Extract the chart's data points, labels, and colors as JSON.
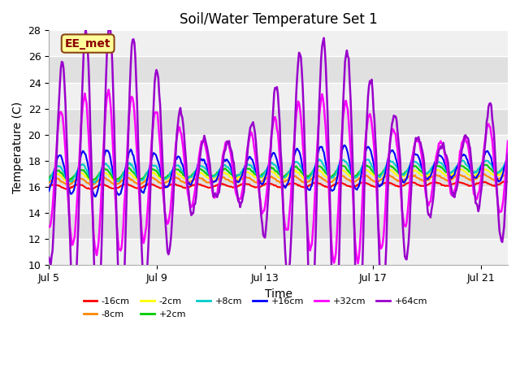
{
  "title": "Soil/Water Temperature Set 1",
  "xlabel": "Time",
  "ylabel": "Temperature (C)",
  "ylim": [
    10,
    28
  ],
  "xlim": [
    0,
    17
  ],
  "yticks": [
    10,
    12,
    14,
    16,
    18,
    20,
    22,
    24,
    26,
    28
  ],
  "xtick_labels": [
    "Jul 5",
    "Jul 9",
    "Jul 13",
    "Jul 17",
    "Jul 21"
  ],
  "xtick_positions": [
    0,
    4,
    8,
    12,
    16
  ],
  "background_color": "#ffffff",
  "plot_bg_light": "#f0f0f0",
  "plot_bg_dark": "#e0e0e0",
  "grid_color": "#ffffff",
  "annotation_text": "EE_met",
  "annotation_bg": "#ffff99",
  "annotation_border": "#8b4513",
  "series": [
    {
      "label": "-16cm",
      "color": "#ff0000"
    },
    {
      "label": "-8cm",
      "color": "#ff8800"
    },
    {
      "label": "-2cm",
      "color": "#ffff00"
    },
    {
      "label": "+2cm",
      "color": "#00cc00"
    },
    {
      "label": "+8cm",
      "color": "#00cccc"
    },
    {
      "label": "+16cm",
      "color": "#0000ff"
    },
    {
      "label": "+32cm",
      "color": "#ff00ff"
    },
    {
      "label": "+64cm",
      "color": "#9900cc"
    }
  ],
  "legend_ncol": 6
}
